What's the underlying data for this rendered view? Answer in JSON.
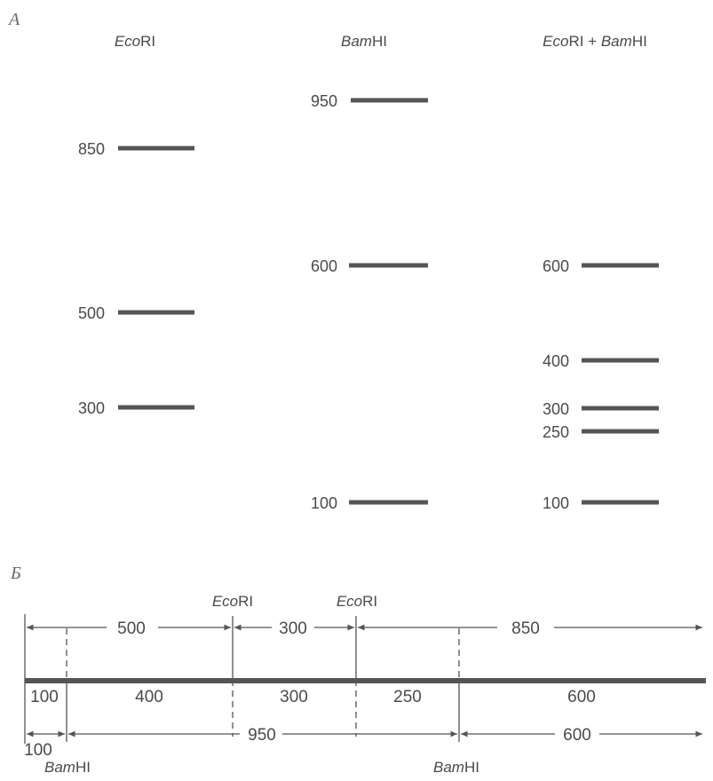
{
  "panel_a": {
    "label": "А",
    "lanes": [
      {
        "id": "ecori",
        "title_italic": "Eco",
        "title_rest": "RI",
        "bands": [
          "850",
          "500",
          "300"
        ]
      },
      {
        "id": "bamhi",
        "title_italic": "Bam",
        "title_rest": "HI",
        "bands": [
          "950",
          "600",
          "100"
        ]
      },
      {
        "id": "both",
        "title": [
          {
            "t": "Eco",
            "i": true
          },
          {
            "t": "RI + ",
            "i": false
          },
          {
            "t": "Bam",
            "i": true
          },
          {
            "t": "HI",
            "i": false
          }
        ],
        "bands": [
          "600",
          "400",
          "300",
          "250",
          "100"
        ]
      }
    ]
  },
  "panel_b": {
    "label": "Б",
    "top_ecori_left": {
      "italic": "Eco",
      "rest": "RI"
    },
    "top_ecori_right": {
      "italic": "Eco",
      "rest": "RI"
    },
    "top_lengths": [
      "500",
      "300",
      "850"
    ],
    "segments": [
      "100",
      "400",
      "300",
      "250",
      "600"
    ],
    "bottom_lengths": [
      "100",
      "950",
      "600"
    ],
    "bottom_bamhi_left": {
      "italic": "Bam",
      "rest": "HI"
    },
    "bottom_bamhi_right": {
      "italic": "Bam",
      "rest": "HI"
    }
  }
}
